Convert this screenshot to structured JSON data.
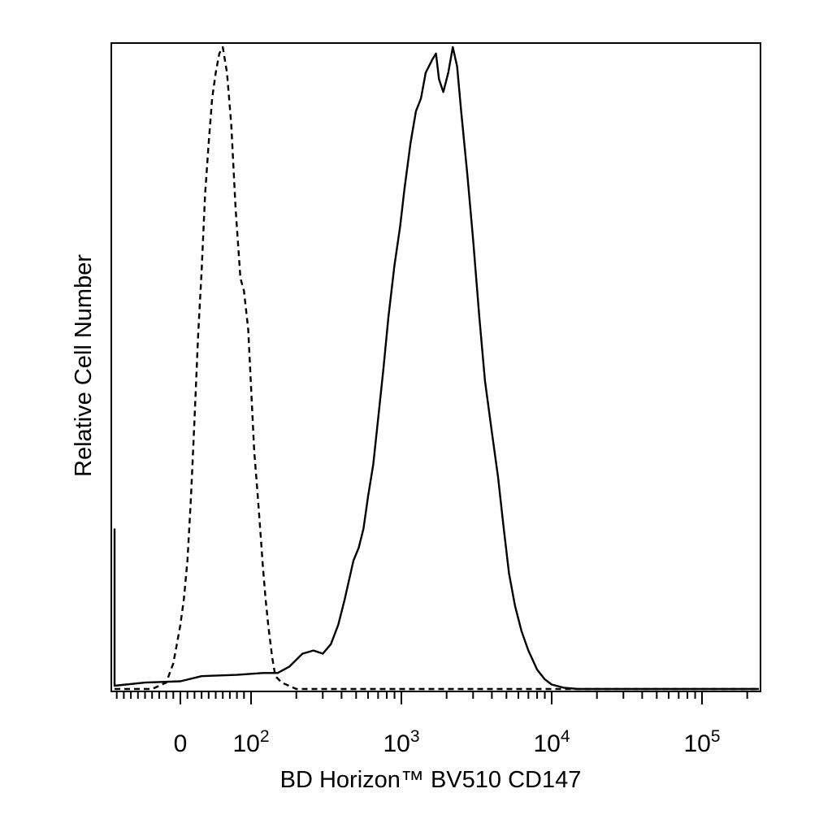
{
  "chart_data": {
    "type": "line",
    "title": "",
    "xlabel": "BD Horizon™ BV510 CD147",
    "ylabel": "Relative Cell Number",
    "x_scale": "biexponential (linear near 0, log above 10^2)",
    "xlim": [
      -250,
      250000
    ],
    "ylim": [
      0,
      1
    ],
    "grid": false,
    "legend": "none",
    "x_ticks": [
      {
        "value": 0,
        "base": "0",
        "exp": ""
      },
      {
        "value": 100,
        "base": "10",
        "exp": "2"
      },
      {
        "value": 1000,
        "base": "10",
        "exp": "3"
      },
      {
        "value": 10000,
        "base": "10",
        "exp": "4"
      },
      {
        "value": 100000,
        "base": "10",
        "exp": "5"
      }
    ],
    "series": [
      {
        "style": "dashed",
        "color": "#000000",
        "points": [
          [
            -250,
            0
          ],
          [
            -40,
            0
          ],
          [
            -20,
            0.01
          ],
          [
            -10,
            0.04
          ],
          [
            -5,
            0.07
          ],
          [
            0,
            0.1
          ],
          [
            5,
            0.14
          ],
          [
            10,
            0.2
          ],
          [
            15,
            0.3
          ],
          [
            20,
            0.42
          ],
          [
            25,
            0.55
          ],
          [
            30,
            0.65
          ],
          [
            35,
            0.77
          ],
          [
            40,
            0.85
          ],
          [
            45,
            0.92
          ],
          [
            50,
            0.96
          ],
          [
            55,
            0.99
          ],
          [
            60,
            1.0
          ],
          [
            66,
            0.96
          ],
          [
            72,
            0.88
          ],
          [
            78,
            0.75
          ],
          [
            85,
            0.64
          ],
          [
            90,
            0.62
          ],
          [
            96,
            0.56
          ],
          [
            100,
            0.47
          ],
          [
            105,
            0.37
          ],
          [
            110,
            0.31
          ],
          [
            115,
            0.25
          ],
          [
            120,
            0.19
          ],
          [
            125,
            0.14
          ],
          [
            130,
            0.1
          ],
          [
            138,
            0.05
          ],
          [
            145,
            0.02
          ],
          [
            160,
            0.01
          ],
          [
            200,
            0
          ],
          [
            250000,
            0
          ]
        ]
      },
      {
        "style": "solid",
        "color": "#000000",
        "points": [
          [
            -250,
            0.25
          ],
          [
            -245,
            0.09
          ],
          [
            -240,
            0.03
          ],
          [
            -230,
            0.01
          ],
          [
            -200,
            0.005
          ],
          [
            -150,
            0.005
          ],
          [
            -50,
            0.01
          ],
          [
            0,
            0.012
          ],
          [
            30,
            0.02
          ],
          [
            80,
            0.022
          ],
          [
            120,
            0.025
          ],
          [
            150,
            0.025
          ],
          [
            180,
            0.035
          ],
          [
            220,
            0.055
          ],
          [
            260,
            0.06
          ],
          [
            300,
            0.055
          ],
          [
            340,
            0.07
          ],
          [
            380,
            0.1
          ],
          [
            420,
            0.14
          ],
          [
            480,
            0.2
          ],
          [
            520,
            0.22
          ],
          [
            560,
            0.25
          ],
          [
            600,
            0.3
          ],
          [
            650,
            0.35
          ],
          [
            700,
            0.42
          ],
          [
            760,
            0.5
          ],
          [
            820,
            0.58
          ],
          [
            900,
            0.66
          ],
          [
            980,
            0.72
          ],
          [
            1050,
            0.78
          ],
          [
            1150,
            0.85
          ],
          [
            1250,
            0.9
          ],
          [
            1350,
            0.92
          ],
          [
            1450,
            0.96
          ],
          [
            1600,
            0.98
          ],
          [
            1700,
            0.99
          ],
          [
            1780,
            0.95
          ],
          [
            1900,
            0.93
          ],
          [
            2050,
            0.96
          ],
          [
            2200,
            1.0
          ],
          [
            2350,
            0.97
          ],
          [
            2500,
            0.9
          ],
          [
            2750,
            0.8
          ],
          [
            3000,
            0.7
          ],
          [
            3300,
            0.58
          ],
          [
            3600,
            0.48
          ],
          [
            4000,
            0.4
          ],
          [
            4400,
            0.33
          ],
          [
            4800,
            0.25
          ],
          [
            5200,
            0.18
          ],
          [
            5700,
            0.13
          ],
          [
            6300,
            0.09
          ],
          [
            7000,
            0.06
          ],
          [
            8000,
            0.03
          ],
          [
            9000,
            0.015
          ],
          [
            10000,
            0.007
          ],
          [
            12000,
            0.002
          ],
          [
            15000,
            0
          ],
          [
            250000,
            0
          ]
        ]
      }
    ]
  }
}
